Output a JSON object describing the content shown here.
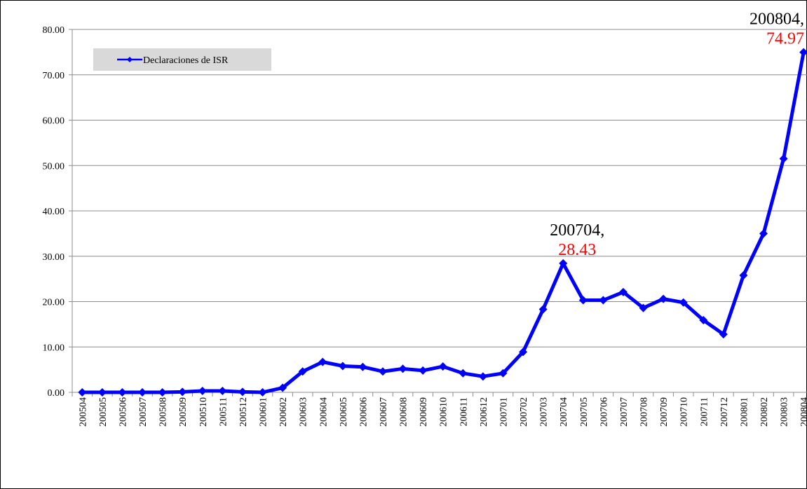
{
  "chart_data": {
    "type": "line",
    "categories": [
      "200504",
      "200505",
      "200506",
      "200507",
      "200508",
      "200509",
      "200510",
      "200511",
      "200512",
      "200601",
      "200602",
      "200603",
      "200604",
      "200605",
      "200606",
      "200607",
      "200608",
      "200609",
      "200610",
      "200611",
      "200612",
      "200701",
      "200702",
      "200703",
      "200704",
      "200705",
      "200706",
      "200707",
      "200708",
      "200709",
      "200710",
      "200711",
      "200712",
      "200801",
      "200802",
      "200803",
      "200804"
    ],
    "series": [
      {
        "name": "Declaraciones de ISR",
        "color": "#0000ff",
        "values": [
          0,
          0,
          0,
          0,
          0,
          0.1,
          0.3,
          0.3,
          0.1,
          0,
          1,
          4.6,
          6.7,
          5.8,
          5.6,
          4.6,
          5.2,
          4.8,
          5.7,
          4.2,
          3.5,
          4.2,
          8.9,
          18.3,
          28.43,
          20.3,
          20.3,
          22.1,
          18.6,
          20.6,
          19.8,
          15.9,
          12.8,
          25.8,
          35.0,
          51.5,
          74.97
        ]
      }
    ],
    "ylim": [
      0,
      80
    ],
    "yticks": [
      {
        "value": 0,
        "label": "0.00"
      },
      {
        "value": 10,
        "label": "10.00"
      },
      {
        "value": 20,
        "label": "20.00"
      },
      {
        "value": 30,
        "label": "30.00"
      },
      {
        "value": 40,
        "label": "40.00"
      },
      {
        "value": 50,
        "label": "50.00"
      },
      {
        "value": 60,
        "label": "60.00"
      },
      {
        "value": 70,
        "label": "70.00"
      },
      {
        "value": 80,
        "label": "80.00"
      }
    ],
    "grid": true,
    "legend": "upper left",
    "annotations": [
      {
        "text": "200704,",
        "series_value": 24
      },
      {
        "text": "200804,",
        "series_value": 36
      }
    ]
  }
}
